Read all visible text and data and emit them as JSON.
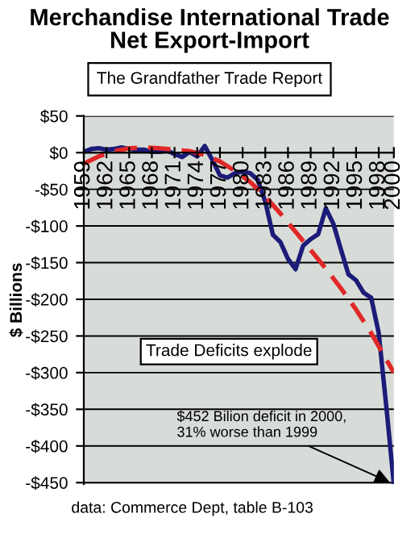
{
  "chart_data": {
    "type": "line",
    "title": "Merchandise International Trade\nNet Export-Import",
    "subtitle": "The Grandfather Trade Report",
    "ylabel": "$ Billions",
    "x": [
      1959,
      1960,
      1961,
      1962,
      1963,
      1964,
      1965,
      1966,
      1967,
      1968,
      1969,
      1970,
      1971,
      1972,
      1973,
      1974,
      1975,
      1976,
      1977,
      1978,
      1979,
      1980,
      1981,
      1982,
      1983,
      1984,
      1985,
      1986,
      1987,
      1988,
      1989,
      1990,
      1991,
      1992,
      1993,
      1994,
      1995,
      1996,
      1997,
      1998,
      1999,
      2000
    ],
    "series": [
      {
        "color": "#1c1c78",
        "line_style": "solid",
        "values": [
          1,
          5,
          6,
          4,
          5,
          7,
          5,
          4,
          4,
          1,
          1,
          3,
          -2,
          -6,
          1,
          -5,
          9,
          -10,
          -31,
          -34,
          -28,
          -26,
          -28,
          -37,
          -67,
          -112,
          -122,
          -145,
          -159,
          -127,
          -118,
          -111,
          -76,
          -97,
          -132,
          -166,
          -174,
          -191,
          -198,
          -246,
          -346,
          -452
        ]
      },
      {
        "color": "#e02828",
        "line_style": "dashed",
        "x": [
          1959,
          1961,
          1963,
          1965,
          1967,
          1969,
          1971,
          1973,
          1975,
          1977,
          1979,
          1981,
          1983,
          1985,
          1987,
          1989,
          1991,
          1993,
          1995,
          1997,
          1999,
          2000
        ],
        "values": [
          -15,
          -5,
          2,
          6,
          7,
          6,
          4,
          2,
          -3,
          -12,
          -25,
          -40,
          -60,
          -83,
          -108,
          -133,
          -158,
          -185,
          -214,
          -246,
          -282,
          -300
        ]
      }
    ],
    "xlim": [
      1959,
      2000
    ],
    "xticks": [
      1959,
      1962,
      1965,
      1968,
      1971,
      1974,
      1977,
      1980,
      1983,
      1986,
      1989,
      1992,
      1995,
      1998,
      2000
    ],
    "ylim": [
      -452,
      50
    ],
    "yticks": [
      {
        "value": 50,
        "label": "$50"
      },
      {
        "value": 0,
        "label": "$0"
      },
      {
        "value": -50,
        "label": "-$50"
      },
      {
        "value": -100,
        "label": "-$100"
      },
      {
        "value": -150,
        "label": "-$150"
      },
      {
        "value": -200,
        "label": "-$200"
      },
      {
        "value": -250,
        "label": "-$250"
      },
      {
        "value": -300,
        "label": "-$300"
      },
      {
        "value": -350,
        "label": "-$350"
      },
      {
        "value": -400,
        "label": "-$400"
      },
      {
        "value": -450,
        "label": "-$450"
      }
    ],
    "grid": "y",
    "annotations": [
      "Trade Deficits explode",
      {
        "text": "$452 Bilion deficit in 2000,\n31% worse than 1999",
        "x": 2000,
        "y": -452
      },
      "data: Commerce Dept, table B-103"
    ]
  }
}
